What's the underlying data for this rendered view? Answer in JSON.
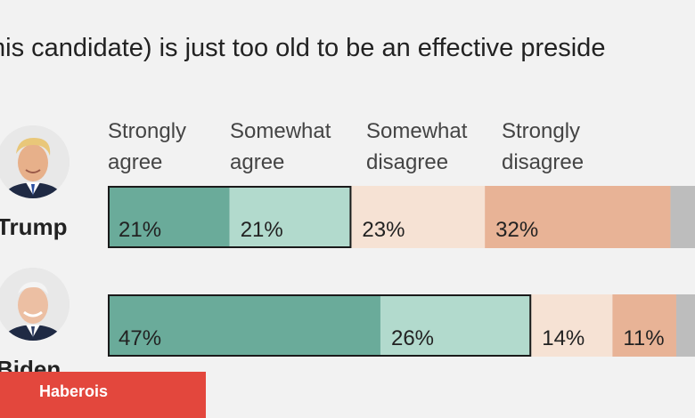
{
  "chart_data": {
    "type": "bar",
    "stacked": true,
    "orientation": "horizontal",
    "title": "(This candidate) is just too old to be an effective president",
    "categories": [
      "Strongly agree",
      "Somewhat agree",
      "Somewhat disagree",
      "Strongly disagree"
    ],
    "colors": [
      "#6aab9a",
      "#b2dacd",
      "#f6e2d4",
      "#e8b396",
      "#bdbdbd"
    ],
    "rows": [
      {
        "candidate": "Trump",
        "values": [
          21,
          21,
          23,
          32
        ],
        "labels": [
          "21%",
          "21%",
          "23%",
          "32%"
        ]
      },
      {
        "candidate": "Biden",
        "values": [
          47,
          26,
          14,
          11
        ],
        "labels": [
          "47%",
          "26%",
          "14%",
          "11%"
        ]
      }
    ],
    "xlim": [
      0,
      100
    ],
    "legend_position": "top"
  },
  "legend": {
    "strongly_agree": "Strongly\nagree",
    "somewhat_agree": "Somewhat\nagree",
    "somewhat_disagree": "Somewhat\ndisagree",
    "strongly_disagree": "Strongly\ndisagree"
  },
  "header": {
    "title_visible": "his candidate) is just too old to be an effective preside"
  },
  "candidates": {
    "trump": "Trump",
    "biden": "Biden"
  },
  "brand": {
    "label": "Haberois",
    "color": "#e3473d"
  }
}
